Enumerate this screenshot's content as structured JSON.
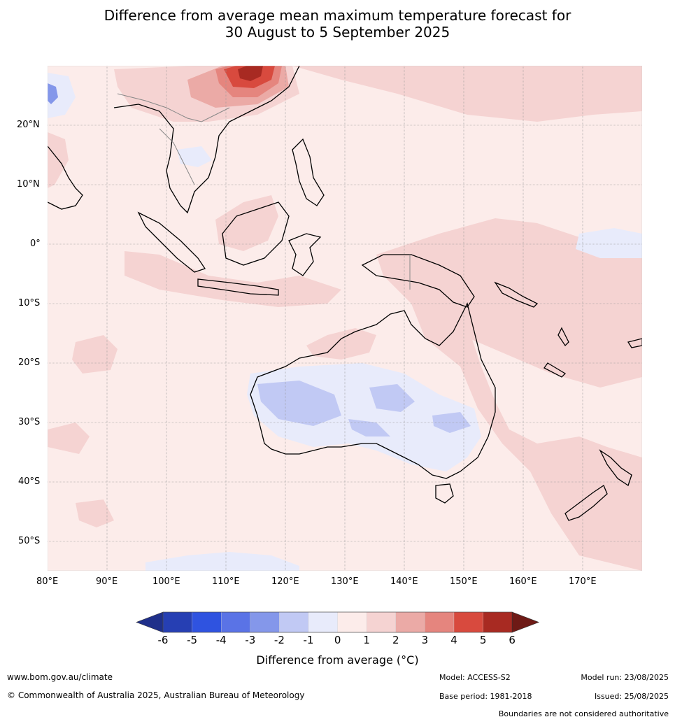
{
  "title": {
    "line1": "Difference from average mean maximum temperature forecast for",
    "line2": "30 August to 5 September 2025"
  },
  "axes": {
    "lat_labels": [
      "20°N",
      "10°N",
      "0°",
      "10°S",
      "20°S",
      "30°S",
      "40°S",
      "50°S"
    ],
    "lon_labels": [
      "80°E",
      "90°E",
      "100°E",
      "110°E",
      "120°E",
      "130°E",
      "140°E",
      "150°E",
      "160°E",
      "170°E"
    ]
  },
  "colorbar": {
    "ticks": [
      "-6",
      "-5",
      "-4",
      "-3",
      "-2",
      "-1",
      "0",
      "1",
      "2",
      "3",
      "4",
      "5",
      "6"
    ],
    "colors": [
      "#1f2f8a",
      "#263fb3",
      "#2f53e0",
      "#5a73e6",
      "#8497ea",
      "#c1c9f4",
      "#e8ebfb",
      "#fcecea",
      "#f5d3d2",
      "#ebaaa6",
      "#e5857e",
      "#d84a3e",
      "#a82a22",
      "#6e1a16"
    ],
    "label": "Difference from average (°C)"
  },
  "colors": {
    "base": "#fcecea",
    "warm1": "#f5d3d2",
    "warm2": "#ebaaa6",
    "warm3": "#e5857e",
    "warm4": "#d84a3e",
    "warm5": "#a82a22",
    "cool1": "#e8ebfb",
    "cool2": "#c1c9f4",
    "cool3": "#8497ea"
  },
  "footer": {
    "website": "www.bom.gov.au/climate",
    "copyright": "© Commonwealth of Australia 2025, Australian Bureau of Meteorology",
    "model": "Model: ACCESS-S2",
    "base_period": "Base period: 1981-2018",
    "model_run": "Model run: 23/08/2025",
    "issued": "Issued: 25/08/2025",
    "disclaimer": "Boundaries are not considered authoritative"
  }
}
